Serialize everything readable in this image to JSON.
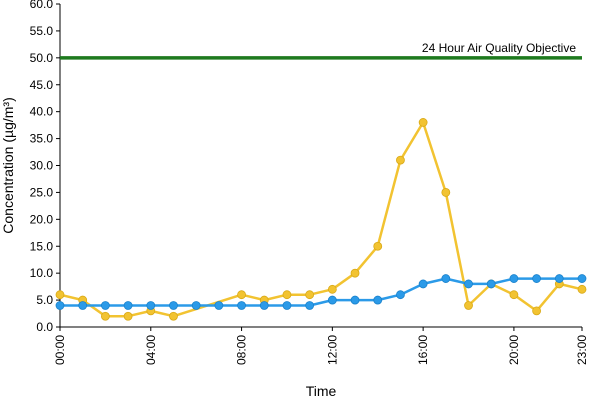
{
  "chart_data": {
    "type": "line",
    "xlabel": "Time",
    "ylabel": "Concentration (µg/m³)",
    "ylim": [
      0,
      60
    ],
    "yticks": [
      "0.0",
      "5.0",
      "10.0",
      "15.0",
      "20.0",
      "25.0",
      "30.0",
      "35.0",
      "40.0",
      "45.0",
      "50.0",
      "55.0",
      "60.0"
    ],
    "x": [
      0,
      1,
      2,
      3,
      4,
      5,
      6,
      7,
      8,
      9,
      10,
      11,
      12,
      13,
      14,
      15,
      16,
      17,
      18,
      19,
      20,
      21,
      22,
      23
    ],
    "xticks": [
      {
        "x": 0,
        "label": "00:00"
      },
      {
        "x": 4,
        "label": "04:00"
      },
      {
        "x": 8,
        "label": "08:00"
      },
      {
        "x": 12,
        "label": "12:00"
      },
      {
        "x": 16,
        "label": "16:00"
      },
      {
        "x": 20,
        "label": "20:00"
      },
      {
        "x": 23,
        "label": "23:00"
      }
    ],
    "series": [
      {
        "color": "#f2c331",
        "values": [
          6,
          5,
          2,
          2,
          3,
          2,
          null,
          null,
          6,
          5,
          6,
          6,
          7,
          10,
          15,
          31,
          38,
          25,
          4,
          8,
          6,
          3,
          8,
          7
        ]
      },
      {
        "color": "#2b9ae8",
        "values": [
          4,
          4,
          4,
          4,
          4,
          4,
          4,
          4,
          4,
          4,
          4,
          4,
          5,
          5,
          5,
          6,
          8,
          9,
          8,
          8,
          9,
          9,
          9,
          9
        ]
      }
    ],
    "objective": {
      "value": 50,
      "label": "24 Hour Air Quality Objective",
      "color": "#1e7a1e"
    },
    "grid": false,
    "legend": "none"
  }
}
